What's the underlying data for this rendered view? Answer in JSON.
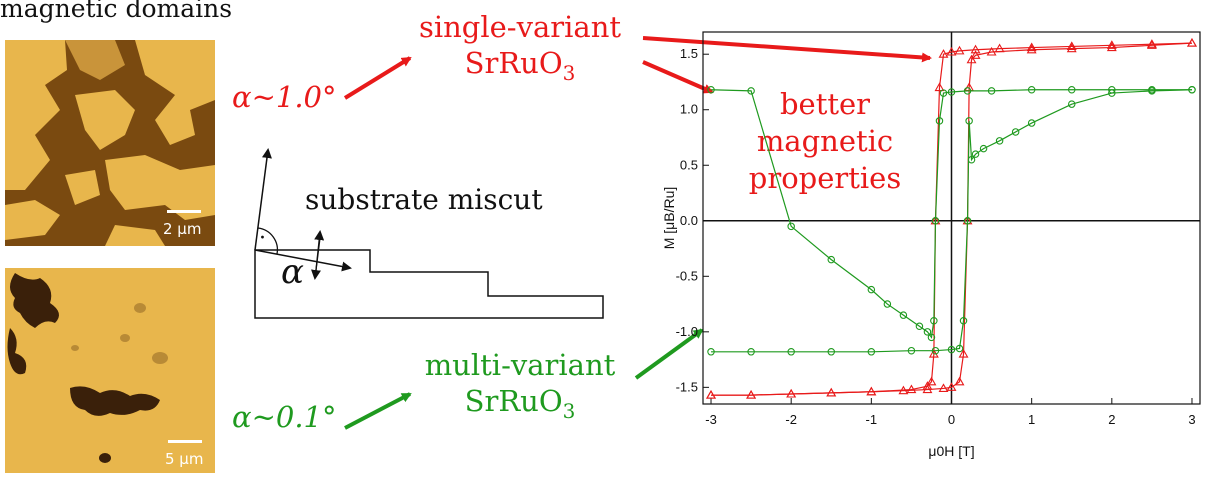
{
  "title": "magnetic domains",
  "images": {
    "top_scale": "2 µm",
    "bottom_scale": "5 µm"
  },
  "labels": {
    "alpha_high": "α~1.0°",
    "alpha_low": "α~0.1°",
    "single_variant": "single-variant",
    "multi_variant": "multi-variant",
    "material": "SrRuO",
    "material_sub": "3",
    "better_line1": "better",
    "better_line2": "magnetic",
    "better_line3": "properties",
    "substrate_miscut": "substrate miscut",
    "alpha_symbol": "α",
    "right_angle_dot": "·"
  },
  "colors": {
    "red": "#e81a1a",
    "green": "#1f9a1f",
    "domain_light": "#e8b64c",
    "domain_dark": "#7a4a10"
  },
  "chart_data": {
    "type": "line",
    "xlabel": "μ0H [T]",
    "ylabel": "M [μB/Ru]",
    "xlim": [
      -3.1,
      3.1
    ],
    "ylim": [
      -1.65,
      1.7
    ],
    "xticks": [
      -3,
      -2,
      -1,
      0,
      1,
      2,
      3
    ],
    "yticks": [
      -1.5,
      -1.0,
      -0.5,
      0.0,
      0.5,
      1.0,
      1.5
    ],
    "series": [
      {
        "name": "single-variant SrRuO3",
        "color": "#e81a1a",
        "marker": "triangle",
        "branch_down": {
          "x": [
            3.0,
            2.5,
            2.0,
            1.5,
            1.0,
            0.6,
            0.3,
            0.1,
            0.0,
            -0.1,
            -0.15,
            -0.2,
            -0.22,
            -0.25,
            -0.3,
            -0.5,
            -1.0,
            -1.5,
            -2.0,
            -2.5,
            -3.0
          ],
          "y": [
            1.6,
            1.59,
            1.58,
            1.57,
            1.56,
            1.55,
            1.54,
            1.53,
            1.52,
            1.5,
            1.2,
            0.0,
            -1.2,
            -1.45,
            -1.49,
            -1.52,
            -1.54,
            -1.55,
            -1.56,
            -1.57,
            -1.57
          ]
        },
        "branch_up": {
          "x": [
            -3.0,
            -2.5,
            -2.0,
            -1.5,
            -1.0,
            -0.6,
            -0.3,
            -0.1,
            0.0,
            0.1,
            0.15,
            0.2,
            0.22,
            0.25,
            0.3,
            0.5,
            1.0,
            1.5,
            2.0,
            2.5,
            3.0
          ],
          "y": [
            -1.57,
            -1.57,
            -1.56,
            -1.55,
            -1.54,
            -1.53,
            -1.52,
            -1.51,
            -1.5,
            -1.45,
            -1.2,
            0.0,
            1.2,
            1.45,
            1.49,
            1.52,
            1.54,
            1.55,
            1.56,
            1.58,
            1.6
          ]
        }
      },
      {
        "name": "multi-variant SrRuO3",
        "color": "#1f9a1f",
        "marker": "circle",
        "branch_down": {
          "x": [
            3.0,
            2.5,
            2.0,
            1.5,
            1.0,
            0.5,
            0.2,
            0.0,
            -0.1,
            -0.15,
            -0.2,
            -0.22,
            -0.25,
            -0.3,
            -0.4,
            -0.6,
            -0.8,
            -1.0,
            -1.5,
            -2.0,
            -2.5,
            -3.0
          ],
          "y": [
            1.18,
            1.18,
            1.18,
            1.18,
            1.18,
            1.17,
            1.17,
            1.16,
            1.15,
            0.9,
            0.0,
            -0.9,
            -1.05,
            -1.0,
            -0.95,
            -0.85,
            -0.75,
            -0.62,
            -0.35,
            -0.05,
            1.17,
            1.18
          ]
        },
        "branch_up": {
          "x": [
            -3.0,
            -2.5,
            -2.0,
            -1.5,
            -1.0,
            -0.5,
            -0.2,
            0.0,
            0.1,
            0.15,
            0.2,
            0.22,
            0.25,
            0.3,
            0.4,
            0.6,
            0.8,
            1.0,
            1.5,
            2.0,
            2.5,
            3.0
          ],
          "y": [
            -1.18,
            -1.18,
            -1.18,
            -1.18,
            -1.18,
            -1.17,
            -1.17,
            -1.16,
            -1.15,
            -0.9,
            0.0,
            0.9,
            0.55,
            0.6,
            0.65,
            0.72,
            0.8,
            0.88,
            1.05,
            1.15,
            1.17,
            1.18
          ]
        }
      }
    ]
  }
}
